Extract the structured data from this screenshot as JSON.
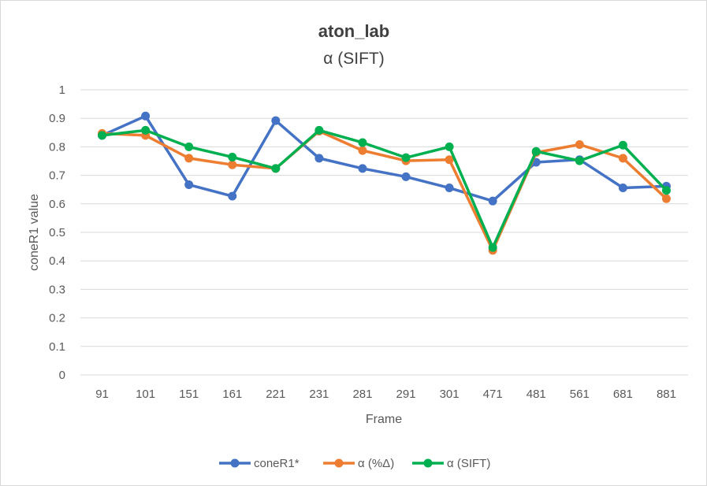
{
  "chart_data": {
    "type": "line",
    "title": "aton_lab",
    "subtitle": "α (SIFT)",
    "xlabel": "Frame",
    "ylabel": "coneR1 value",
    "categories": [
      "91",
      "101",
      "151",
      "161",
      "221",
      "231",
      "281",
      "291",
      "301",
      "471",
      "481",
      "561",
      "681",
      "881"
    ],
    "ylim": [
      0,
      1
    ],
    "yticks": [
      "0",
      "0.1",
      "0.2",
      "0.3",
      "0.4",
      "0.5",
      "0.6",
      "0.7",
      "0.8",
      "0.9",
      "1"
    ],
    "grid": true,
    "legend_position": "bottom",
    "series": [
      {
        "name": "coneR1*",
        "color": "#4472C4",
        "values": [
          0.84,
          0.908,
          0.667,
          0.627,
          0.892,
          0.76,
          0.724,
          0.695,
          0.656,
          0.61,
          0.746,
          0.755,
          0.656,
          0.662
        ]
      },
      {
        "name": "α (%Δ)",
        "color": "#ED7D31",
        "values": [
          0.847,
          0.84,
          0.76,
          0.737,
          0.724,
          0.855,
          0.787,
          0.751,
          0.755,
          0.437,
          0.78,
          0.808,
          0.76,
          0.618
        ]
      },
      {
        "name": "α (SIFT)",
        "color": "#00B050",
        "values": [
          0.84,
          0.858,
          0.8,
          0.764,
          0.724,
          0.858,
          0.815,
          0.762,
          0.8,
          0.447,
          0.784,
          0.751,
          0.806,
          0.647
        ]
      }
    ]
  }
}
